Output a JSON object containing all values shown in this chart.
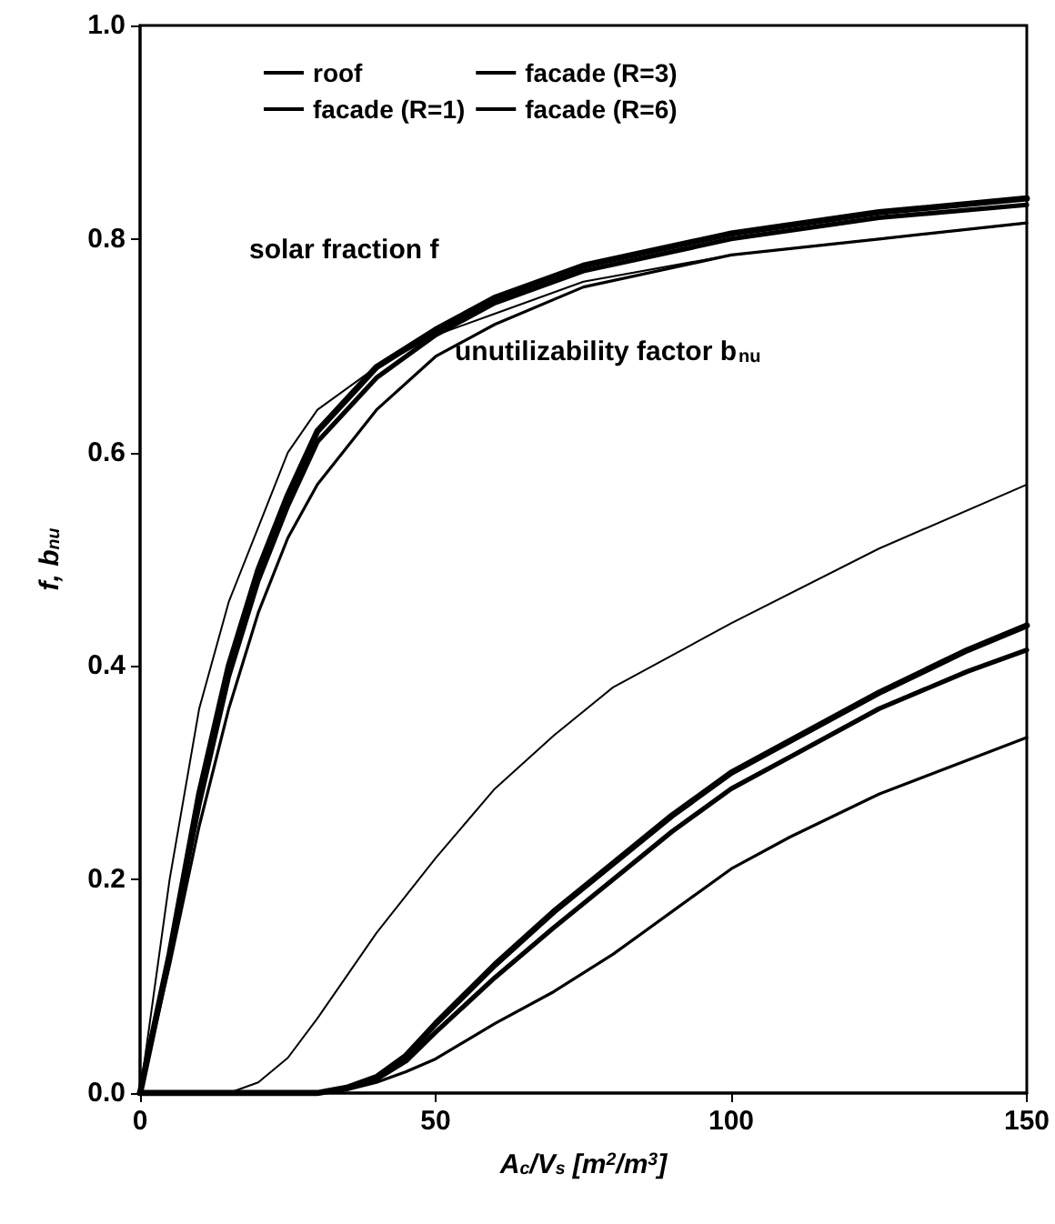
{
  "chart_data": {
    "type": "line",
    "xlabel": "A$_{c}$/V$_{s}$ [m$^{2}$/m$^{3}$]",
    "ylabel": "f, b$_{nu}$",
    "xlim": [
      0,
      150
    ],
    "xticks": [
      0,
      50,
      100,
      150
    ],
    "ylim": [
      0,
      1
    ],
    "yticks": [
      {
        "value": 0,
        "label": "0.0"
      },
      {
        "value": 0.2,
        "label": "0.2"
      },
      {
        "value": 0.4,
        "label": "0.4"
      },
      {
        "value": 0.6,
        "label": "0.6"
      },
      {
        "value": 0.8,
        "label": "0.8"
      },
      {
        "value": 1,
        "label": "1.0"
      }
    ],
    "grid": false,
    "legend": "top",
    "marker": "none",
    "line_style": "solid",
    "annotations": [
      "solar fraction f",
      "unutilizability factor b$_{nu}$"
    ],
    "series": [
      {
        "name": "roof",
        "color": "#000000",
        "x": [
          0,
          5,
          10,
          15,
          20,
          25,
          30,
          40,
          50,
          60,
          75,
          100,
          125,
          150
        ],
        "values": [
          0,
          0.2,
          0.36,
          0.46,
          0.53,
          0.6,
          0.64,
          0.68,
          0.71,
          0.73,
          0.76,
          0.785,
          0.8,
          0.815
        ]
      },
      {
        "name": "facade (R=1)",
        "color": "#000000",
        "x": [
          0,
          5,
          10,
          15,
          20,
          25,
          30,
          40,
          50,
          60,
          75,
          100,
          125,
          150
        ],
        "values": [
          0,
          0.12,
          0.25,
          0.36,
          0.45,
          0.52,
          0.57,
          0.64,
          0.69,
          0.72,
          0.755,
          0.785,
          0.8,
          0.815
        ]
      },
      {
        "name": "facade (R=3)",
        "color": "#000000",
        "x": [
          0,
          5,
          10,
          15,
          20,
          25,
          30,
          40,
          50,
          60,
          75,
          100,
          125,
          150
        ],
        "values": [
          0,
          0.13,
          0.27,
          0.39,
          0.48,
          0.55,
          0.61,
          0.67,
          0.71,
          0.74,
          0.77,
          0.8,
          0.82,
          0.832
        ]
      },
      {
        "name": "facade (R=6)",
        "color": "#000000",
        "x": [
          0,
          5,
          10,
          15,
          20,
          25,
          30,
          40,
          50,
          60,
          75,
          100,
          125,
          150
        ],
        "values": [
          0,
          0.13,
          0.28,
          0.4,
          0.49,
          0.56,
          0.62,
          0.68,
          0.715,
          0.745,
          0.775,
          0.805,
          0.825,
          0.838
        ]
      },
      {
        "color": "#000000",
        "x": [
          0,
          15,
          20,
          25,
          30,
          35,
          40,
          50,
          60,
          70,
          80,
          100,
          125,
          150
        ],
        "values": [
          0,
          0,
          0.01,
          0.033,
          0.07,
          0.11,
          0.15,
          0.22,
          0.285,
          0.335,
          0.38,
          0.44,
          0.51,
          0.57
        ]
      },
      {
        "color": "#000000",
        "x": [
          0,
          30,
          35,
          40,
          45,
          50,
          60,
          70,
          80,
          90,
          100,
          110,
          125,
          150
        ],
        "values": [
          0,
          0,
          0.003,
          0.01,
          0.02,
          0.032,
          0.065,
          0.095,
          0.13,
          0.17,
          0.21,
          0.24,
          0.28,
          0.333
        ]
      },
      {
        "color": "#000000",
        "x": [
          0,
          30,
          35,
          40,
          45,
          50,
          60,
          70,
          80,
          90,
          100,
          110,
          125,
          140,
          150
        ],
        "values": [
          0,
          0,
          0.004,
          0.013,
          0.03,
          0.057,
          0.108,
          0.155,
          0.2,
          0.245,
          0.285,
          0.315,
          0.36,
          0.395,
          0.415
        ]
      },
      {
        "color": "#000000",
        "x": [
          0,
          30,
          35,
          40,
          45,
          50,
          60,
          70,
          80,
          90,
          100,
          110,
          125,
          140,
          150
        ],
        "values": [
          0,
          0,
          0.005,
          0.015,
          0.035,
          0.065,
          0.12,
          0.17,
          0.215,
          0.26,
          0.3,
          0.33,
          0.375,
          0.415,
          0.438
        ]
      }
    ]
  }
}
